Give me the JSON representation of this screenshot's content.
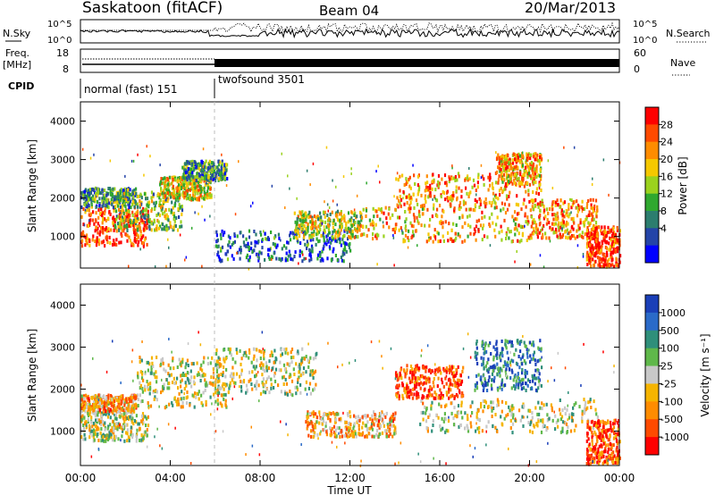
{
  "header": {
    "station": "Saskatoon (fitACF)",
    "beam": "Beam 04",
    "date": "20/Mar/2013"
  },
  "top_panels": {
    "nsky_label": "N.Sky",
    "nsearch_label": "N.Search",
    "freq_label_1": "Freq.",
    "freq_label_2": "[MHz]",
    "nave_label": "Nave",
    "cpid_label": "CPID",
    "noise_ticks": [
      "10^5",
      "10^0"
    ],
    "freq_ticks": [
      "18",
      "8"
    ],
    "nave_ticks": [
      "60",
      "0"
    ],
    "cpid_segments": [
      {
        "label": "normal (fast) 151",
        "start_hour": 0,
        "end_hour": 6
      },
      {
        "label": "twofsound 3501",
        "start_hour": 6,
        "end_hour": 24
      }
    ]
  },
  "power_colorbar": {
    "label": "Power [dB]",
    "ticks": [
      "28",
      "24",
      "20",
      "16",
      "12",
      "8",
      "4"
    ],
    "colors": [
      "#ff0000",
      "#ff4a00",
      "#ff8c00",
      "#f5c800",
      "#9bd21e",
      "#2fa82f",
      "#2c7d6e",
      "#2444a8",
      "#0000ff"
    ]
  },
  "velocity_colorbar": {
    "label": "Velocity [m s⁻¹]",
    "ticks": [
      "1000",
      "500",
      "100",
      "25",
      "-25",
      "-100",
      "-500",
      "-1000"
    ],
    "colors": [
      "#1a3fb8",
      "#2a6ac8",
      "#2f8f7a",
      "#5fb84a",
      "#c8c8c8",
      "#f5b400",
      "#ff8c00",
      "#ff4a00",
      "#ff0000"
    ]
  },
  "chart_data": {
    "type": "heatmap",
    "xlabel": "Time UT",
    "ylabel": "Slant Range [km]",
    "x_ticks": [
      "00:00",
      "04:00",
      "08:00",
      "12:00",
      "16:00",
      "20:00",
      "00:00"
    ],
    "y_ticks": [
      1000,
      2000,
      3000,
      4000
    ],
    "xlim_hours": [
      0,
      24
    ],
    "ylim_km": [
      180,
      4500
    ],
    "mode_change_hour": 6,
    "panels": [
      {
        "quantity": "Power [dB]",
        "scatter_regions": [
          {
            "t": [
              0.0,
              3.0
            ],
            "range_km": [
              800,
              1800
            ],
            "value": 26
          },
          {
            "t": [
              0.0,
              2.5
            ],
            "range_km": [
              1800,
              2300
            ],
            "value": 10
          },
          {
            "t": [
              1.5,
              4.5
            ],
            "range_km": [
              1200,
              2200
            ],
            "value": 14
          },
          {
            "t": [
              3.5,
              5.8
            ],
            "range_km": [
              2000,
              2600
            ],
            "value": 18
          },
          {
            "t": [
              4.5,
              6.5
            ],
            "range_km": [
              2500,
              3000
            ],
            "value": 10
          },
          {
            "t": [
              6.0,
              12.0
            ],
            "range_km": [
              400,
              1200
            ],
            "value": 6
          },
          {
            "t": [
              9.5,
              12.5
            ],
            "range_km": [
              1000,
              1700
            ],
            "value": 16
          },
          {
            "t": [
              12.5,
              20.0
            ],
            "range_km": [
              900,
              1800
            ],
            "value": 20
          },
          {
            "t": [
              14.0,
              20.5
            ],
            "range_km": [
              1800,
              2700
            ],
            "value": 22
          },
          {
            "t": [
              18.5,
              20.5
            ],
            "range_km": [
              2400,
              3200
            ],
            "value": 20
          },
          {
            "t": [
              20.0,
              23.0
            ],
            "range_km": [
              1000,
              2000
            ],
            "value": 22
          },
          {
            "t": [
              22.5,
              24.0
            ],
            "range_km": [
              250,
              1300
            ],
            "value": 26
          }
        ],
        "clim": [
          0,
          30
        ]
      },
      {
        "quantity": "Velocity [m s⁻¹]",
        "scatter_regions": [
          {
            "t": [
              0.0,
              3.0
            ],
            "range_km": [
              800,
              1500
            ],
            "value": 0
          },
          {
            "t": [
              0.0,
              2.5
            ],
            "range_km": [
              1500,
              1900
            ],
            "value": -300
          },
          {
            "t": [
              2.5,
              6.5
            ],
            "range_km": [
              1600,
              2800
            ],
            "value": 0
          },
          {
            "t": [
              6.0,
              10.5
            ],
            "range_km": [
              1900,
              3000
            ],
            "value": 0
          },
          {
            "t": [
              10.0,
              14.0
            ],
            "range_km": [
              900,
              1500
            ],
            "value": -300
          },
          {
            "t": [
              14.0,
              17.0
            ],
            "range_km": [
              1800,
              2600
            ],
            "value": -700
          },
          {
            "t": [
              15.0,
              23.0
            ],
            "range_km": [
              1000,
              1800
            ],
            "value": 0
          },
          {
            "t": [
              17.5,
              20.5
            ],
            "range_km": [
              2000,
              3200
            ],
            "value": 600
          },
          {
            "t": [
              22.5,
              24.0
            ],
            "range_km": [
              250,
              1300
            ],
            "value": -700
          }
        ],
        "clim": [
          -1000,
          1000
        ]
      }
    ]
  }
}
